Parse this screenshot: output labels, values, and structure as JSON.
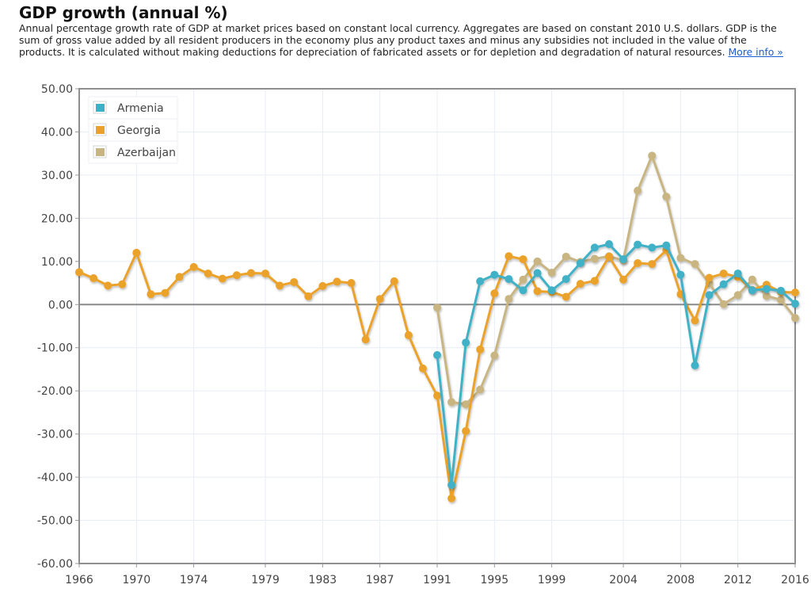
{
  "header": {
    "title": "GDP growth (annual %)",
    "description_lines": [
      "Annual percentage growth rate of GDP at market prices based on constant local currency. Aggregates are based on constant 2010 U.S. dollars. GDP is the",
      "sum of gross value added by all resident producers in the economy plus any product taxes and minus any subsidies not included in the value of the",
      "products. It is calculated without making deductions for depreciation of fabricated assets or for depletion and degradation of natural resources."
    ],
    "more_info_link": "More info »"
  },
  "chart_data": {
    "type": "line",
    "title": "GDP growth (annual %)",
    "xlabel": "",
    "ylabel": "",
    "xlim": [
      1966,
      2016
    ],
    "ylim": [
      -60,
      50
    ],
    "grid": true,
    "legend_position": "top-left",
    "x_tick_labels": [
      "1966",
      "1970",
      "1974",
      "1979",
      "1983",
      "1987",
      "1991",
      "1995",
      "1999",
      "2004",
      "2008",
      "2012",
      "2016"
    ],
    "y_tick_labels": [
      "50.00",
      "40.00",
      "30.00",
      "20.00",
      "10.00",
      "0.00",
      "-10.00",
      "-20.00",
      "-30.00",
      "-40.00",
      "-50.00",
      "-60.00"
    ],
    "series": [
      {
        "name": "Armenia",
        "color": "#3fb1c7",
        "start_year": 1991,
        "values": [
          -11.7,
          -41.8,
          -8.8,
          5.4,
          6.9,
          5.9,
          3.3,
          7.3,
          3.3,
          5.9,
          9.6,
          13.2,
          14.0,
          10.5,
          13.9,
          13.2,
          13.7,
          6.9,
          -14.1,
          2.2,
          4.7,
          7.2,
          3.3,
          3.6,
          3.2,
          0.2
        ]
      },
      {
        "name": "Georgia",
        "color": "#eba22b",
        "start_year": 1966,
        "values": [
          7.5,
          6.1,
          4.4,
          4.7,
          12.0,
          2.4,
          2.7,
          6.4,
          8.7,
          7.2,
          6.0,
          6.8,
          7.3,
          7.2,
          4.4,
          5.2,
          1.9,
          4.3,
          5.3,
          5.0,
          -8.1,
          1.3,
          5.4,
          -7.1,
          -14.8,
          -21.1,
          -44.9,
          -29.3,
          -10.4,
          2.6,
          11.2,
          10.5,
          3.1,
          2.9,
          1.8,
          4.8,
          5.5,
          11.1,
          5.8,
          9.6,
          9.4,
          12.6,
          2.4,
          -3.7,
          6.2,
          7.2,
          6.4,
          3.4,
          4.6,
          2.9,
          2.8
        ]
      },
      {
        "name": "Azerbaijan",
        "color": "#c8b582",
        "start_year": 1991,
        "values": [
          -0.7,
          -22.6,
          -23.1,
          -19.7,
          -11.8,
          1.3,
          5.8,
          10.0,
          7.4,
          11.1,
          9.9,
          10.6,
          11.2,
          10.2,
          26.4,
          34.5,
          25.0,
          10.8,
          9.4,
          4.9,
          0.1,
          2.2,
          5.8,
          2.0,
          1.1,
          -3.1
        ]
      }
    ]
  }
}
